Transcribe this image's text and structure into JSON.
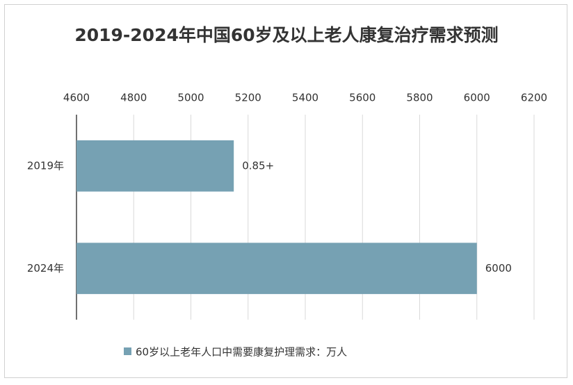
{
  "chart_data": {
    "type": "bar",
    "orientation": "horizontal",
    "title": "2019-2024年中国60岁及以上老人康复治疗需求预测",
    "categories": [
      "2019年",
      "2024年"
    ],
    "series": [
      {
        "name": "60岁以上老年人口中需要康复护理需求：万人",
        "color": "#76a1b3",
        "values": [
          5150,
          6000
        ]
      }
    ],
    "annotations": [
      "0.85+"
    ],
    "xlim": [
      4600,
      6200
    ],
    "xticks": [
      4600,
      4800,
      5000,
      5200,
      5400,
      5600,
      5800,
      6000,
      6200
    ],
    "grid": true,
    "legend": "bottom"
  }
}
